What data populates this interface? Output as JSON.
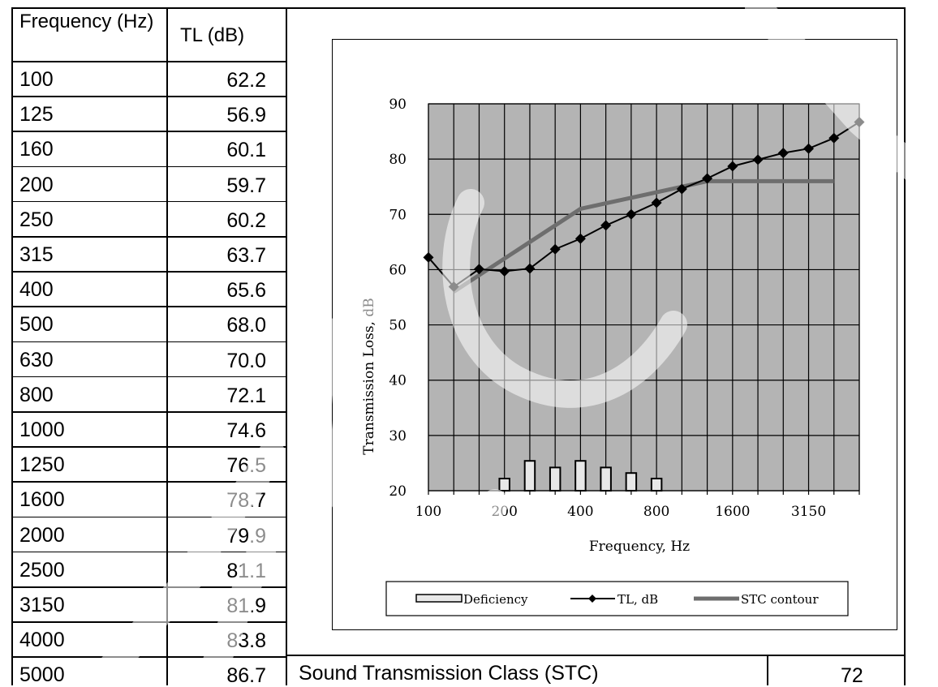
{
  "table": {
    "headers": {
      "frequency": "Frequency (Hz)",
      "tl": "TL (dB)"
    },
    "rows": [
      {
        "freq": "100",
        "tl": "62.2"
      },
      {
        "freq": "125",
        "tl": "56.9"
      },
      {
        "freq": "160",
        "tl": "60.1"
      },
      {
        "freq": "200",
        "tl": "59.7"
      },
      {
        "freq": "250",
        "tl": "60.2"
      },
      {
        "freq": "315",
        "tl": "63.7"
      },
      {
        "freq": "400",
        "tl": "65.6"
      },
      {
        "freq": "500",
        "tl": "68.0"
      },
      {
        "freq": "630",
        "tl": "70.0"
      },
      {
        "freq": "800",
        "tl": "72.1"
      },
      {
        "freq": "1000",
        "tl": "74.6"
      },
      {
        "freq": "1250",
        "tl": "76.5"
      },
      {
        "freq": "1600",
        "tl": "78.7"
      },
      {
        "freq": "2000",
        "tl": "79.9"
      },
      {
        "freq": "2500",
        "tl": "81.1"
      },
      {
        "freq": "3150",
        "tl": "81.9"
      },
      {
        "freq": "4000",
        "tl": "83.8"
      },
      {
        "freq": "5000",
        "tl": "86.7"
      }
    ]
  },
  "stc": {
    "label": "Sound Transmission Class (STC)",
    "value": "72"
  },
  "chart_data": {
    "type": "line",
    "x": [
      100,
      125,
      160,
      200,
      250,
      315,
      400,
      500,
      630,
      800,
      1000,
      1250,
      1600,
      2000,
      2500,
      3150,
      4000,
      5000
    ],
    "x_tick_labels": [
      "100",
      "200",
      "400",
      "800",
      "1600",
      "3150"
    ],
    "x_tick_values": [
      100,
      200,
      400,
      800,
      1600,
      3150
    ],
    "xlabel": "Frequency, Hz",
    "ylabel": "Transmission Loss, dB",
    "ylim": [
      20,
      90
    ],
    "y_ticks": [
      20,
      30,
      40,
      50,
      60,
      70,
      80,
      90
    ],
    "grid": true,
    "legend_position": "bottom",
    "series": [
      {
        "name": "Deficiency",
        "kind": "bar",
        "color": "#e8e8e8",
        "x": [
          200,
          250,
          315,
          400,
          500,
          630,
          800
        ],
        "values": [
          22.2,
          25.4,
          24.2,
          25.4,
          24.2,
          23.2,
          22.2
        ]
      },
      {
        "name": "TL, dB",
        "kind": "line-marker",
        "color": "#000000",
        "x": [
          100,
          125,
          160,
          200,
          250,
          315,
          400,
          500,
          630,
          800,
          1000,
          1250,
          1600,
          2000,
          2500,
          3150,
          4000,
          5000
        ],
        "values": [
          62.2,
          56.9,
          60.1,
          59.7,
          60.2,
          63.7,
          65.6,
          68.0,
          70.0,
          72.1,
          74.6,
          76.5,
          78.7,
          79.9,
          81.1,
          81.9,
          83.8,
          86.7
        ]
      },
      {
        "name": "STC contour",
        "kind": "line",
        "color": "#6e6e6e",
        "x": [
          125,
          400,
          1250,
          4000
        ],
        "values": [
          56,
          71,
          76,
          76
        ]
      }
    ],
    "colors": {
      "plot_background": "#b4b4b4",
      "grid": "#000000"
    }
  }
}
